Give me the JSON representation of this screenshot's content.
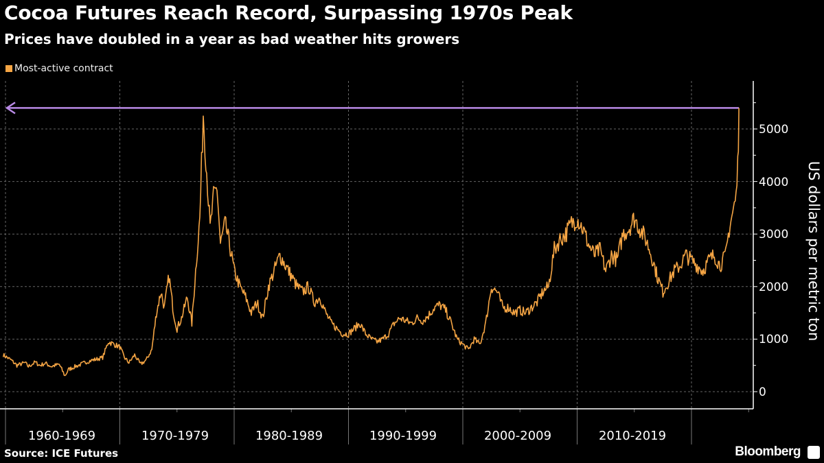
{
  "header": {
    "title": "Cocoa Futures Reach Record, Surpassing 1970s Peak",
    "subtitle": "Prices have doubled in a year as bad weather hits growers"
  },
  "footer": {
    "source": "Source: ICE Futures",
    "brand": "Bloomberg"
  },
  "chart_data": {
    "type": "line",
    "title": "Cocoa Futures Reach Record, Surpassing 1970s Peak",
    "subtitle": "Prices have doubled in a year as bad weather hits growers",
    "ylabel": "US dollars per metric ton",
    "xlabel": "",
    "ylim": [
      -300,
      6000
    ],
    "xlim": [
      1959.8,
      2025.5
    ],
    "yticks": [
      "0",
      "1000",
      "2000",
      "3000",
      "4000",
      "5000"
    ],
    "ytick_values": [
      0,
      1000,
      2000,
      3000,
      4000,
      5000
    ],
    "xtick_labels": [
      "1960-1969",
      "1970-1979",
      "1980-1989",
      "1990-1999",
      "2000-2009",
      "2010-2019"
    ],
    "xtick_starts": [
      1960,
      1970,
      1980,
      1990,
      2000,
      2010
    ],
    "grid": true,
    "legend": {
      "placement": "top-left",
      "entries": [
        {
          "name": "Most-active contract",
          "color": "#f5a544"
        }
      ]
    },
    "annotation": {
      "type": "horizontal-arrow",
      "value": 5400,
      "color": "#b98ae6"
    },
    "series": [
      {
        "name": "Most-active contract",
        "color": "#f5a544",
        "x": [
          1959.8,
          1960.5,
          1961,
          1961.7,
          1962,
          1962.6,
          1963,
          1963.5,
          1964,
          1964.7,
          1965.2,
          1965.5,
          1966,
          1966.6,
          1967,
          1967.6,
          1968,
          1968.5,
          1969,
          1969.5,
          1970,
          1970.4,
          1970.8,
          1971.3,
          1971.8,
          1972.3,
          1972.8,
          1973.2,
          1973.6,
          1973.9,
          1974.3,
          1974.7,
          1975,
          1975.4,
          1975.9,
          1976.3,
          1976.7,
          1977,
          1977.3,
          1977.6,
          1977.9,
          1978.2,
          1978.5,
          1978.8,
          1979.2,
          1979.6,
          1980,
          1980.5,
          1981,
          1981.5,
          1982,
          1982.5,
          1983,
          1983.5,
          1984,
          1984.5,
          1985,
          1985.5,
          1986,
          1986.5,
          1987,
          1987.5,
          1988,
          1988.5,
          1989,
          1989.5,
          1990,
          1990.5,
          1991,
          1991.5,
          1992,
          1992.5,
          1993,
          1993.5,
          1994,
          1994.5,
          1995,
          1995.5,
          1996,
          1996.5,
          1997,
          1997.5,
          1998,
          1998.5,
          1999,
          1999.5,
          2000,
          2000.5,
          2001,
          2001.5,
          2002,
          2002.5,
          2003,
          2003.5,
          2004,
          2004.5,
          2005,
          2005.5,
          2006,
          2006.5,
          2007,
          2007.5,
          2008,
          2008.5,
          2009,
          2009.5,
          2010,
          2010.5,
          2011,
          2011.5,
          2012,
          2012.5,
          2013,
          2013.5,
          2014,
          2014.5,
          2015,
          2015.5,
          2016,
          2016.5,
          2017,
          2017.5,
          2018,
          2018.5,
          2019,
          2019.5,
          2020,
          2020.5,
          2021,
          2021.5,
          2022,
          2022.5,
          2023,
          2023.3,
          2023.6,
          2023.9,
          2024.05,
          2024.15
        ],
        "y": [
          700,
          600,
          500,
          550,
          480,
          560,
          500,
          540,
          480,
          520,
          300,
          420,
          470,
          520,
          560,
          600,
          620,
          650,
          950,
          900,
          850,
          650,
          550,
          700,
          520,
          600,
          800,
          1500,
          1900,
          1600,
          2200,
          1500,
          1200,
          1400,
          1800,
          1300,
          2500,
          3300,
          5300,
          4200,
          3100,
          3700,
          3900,
          2800,
          3200,
          2800,
          2300,
          2000,
          1800,
          1500,
          1700,
          1400,
          2000,
          2300,
          2600,
          2400,
          2200,
          2000,
          1900,
          2000,
          1700,
          1800,
          1500,
          1300,
          1200,
          1100,
          1100,
          1200,
          1300,
          1100,
          1000,
          950,
          1000,
          1100,
          1300,
          1400,
          1350,
          1300,
          1400,
          1350,
          1450,
          1600,
          1650,
          1550,
          1300,
          1000,
          900,
          800,
          1000,
          900,
          1300,
          2000,
          1900,
          1600,
          1600,
          1500,
          1550,
          1500,
          1600,
          1700,
          1900,
          2000,
          2700,
          2900,
          3000,
          3200,
          3300,
          3100,
          2800,
          2600,
          2700,
          2300,
          2600,
          2500,
          3000,
          3100,
          3300,
          3100,
          2900,
          2600,
          2200,
          1900,
          2100,
          2300,
          2400,
          2600,
          2500,
          2400,
          2300,
          2500,
          2600,
          2400,
          2600,
          3100,
          3400,
          3700,
          4300,
          5400
        ]
      }
    ]
  }
}
